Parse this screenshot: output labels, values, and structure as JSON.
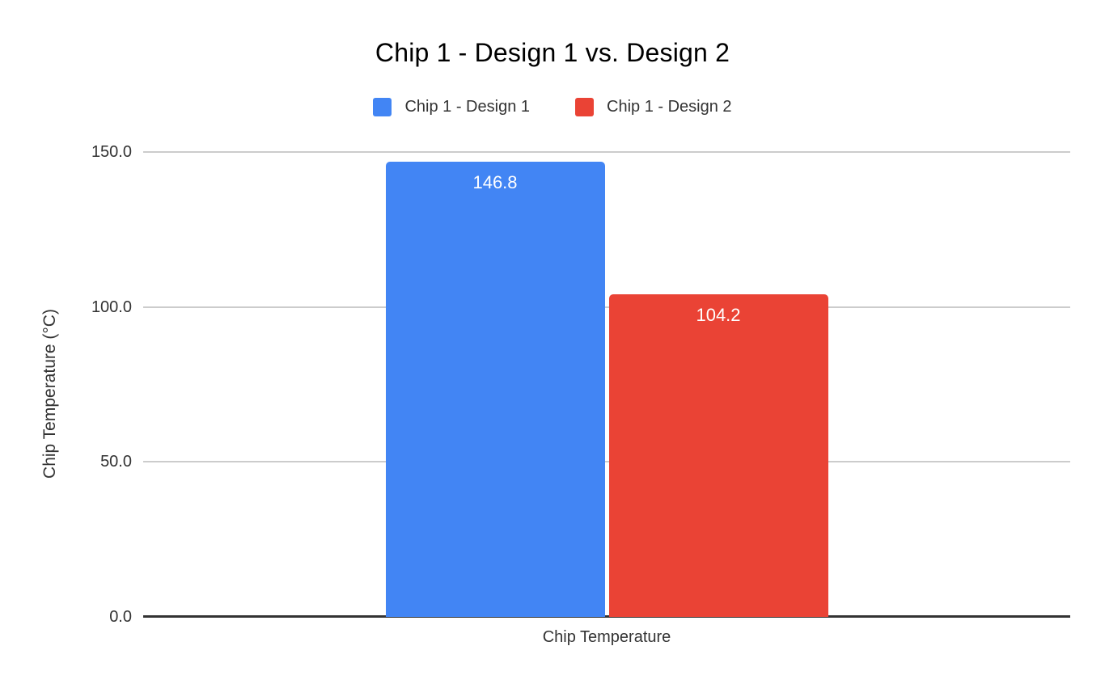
{
  "chart_data": {
    "type": "bar",
    "title": "Chip 1 - Design 1 vs. Design 2",
    "categories": [
      "Chip Temperature"
    ],
    "series": [
      {
        "name": "Chip 1 - Design 1",
        "values": [
          146.8
        ],
        "data_labels": [
          "146.8"
        ],
        "color": "#4285f4"
      },
      {
        "name": "Chip 1 - Design 2",
        "values": [
          104.2
        ],
        "data_labels": [
          "104.2"
        ],
        "color": "#ea4335"
      }
    ],
    "xlabel": "Chip Temperature",
    "ylabel": "Chip Temperature (°C)",
    "ylim": [
      0,
      150
    ],
    "yticks": [
      150,
      100,
      50,
      0
    ],
    "ytick_labels": [
      "150.0",
      "100.0",
      "50.0",
      "0.0"
    ],
    "grid": true,
    "legend_position": "top",
    "colors": {
      "background": "#ffffff",
      "title_text": "#000000",
      "axis_text": "#333333",
      "gridline": "#cccccc",
      "axis_line": "#333333",
      "data_label_text": "#ffffff"
    }
  }
}
